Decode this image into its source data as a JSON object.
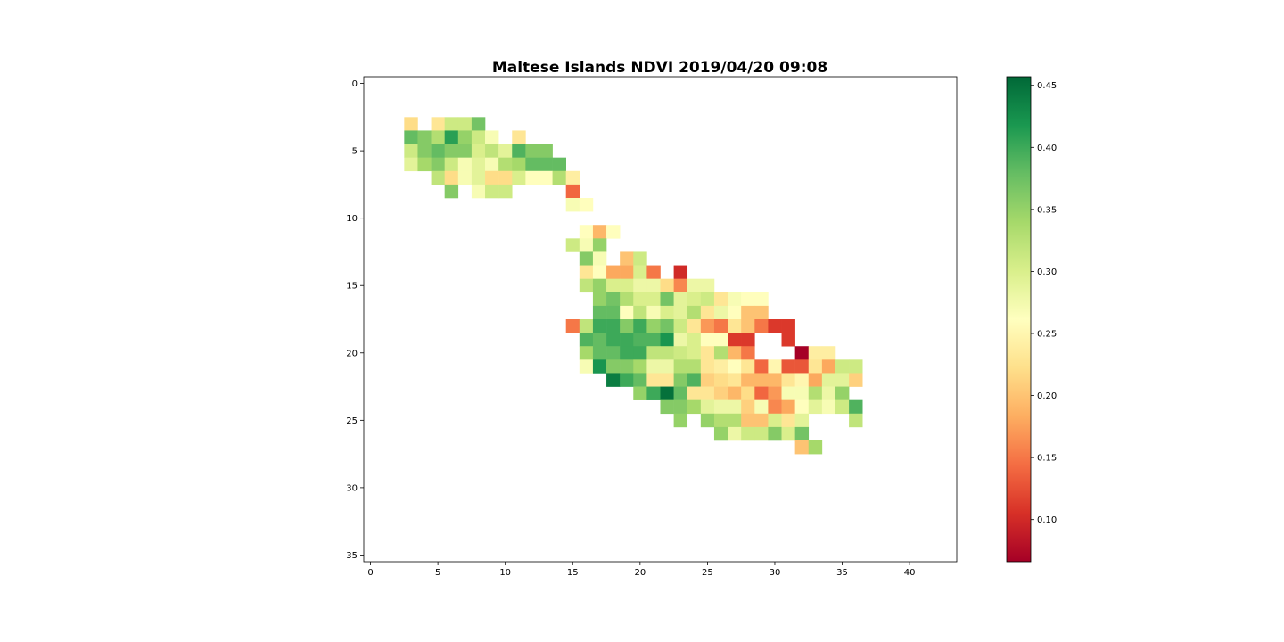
{
  "chart_data": {
    "type": "heatmap",
    "title": "Maltese Islands NDVI 2019/04/20 09:08",
    "colormap": "RdYlGn",
    "vmin": 0.066,
    "vmax": 0.457,
    "xlim": [
      -0.5,
      43.5
    ],
    "ylim": [
      35.5,
      -0.5
    ],
    "x_ticks": [
      0,
      5,
      10,
      15,
      20,
      25,
      30,
      35,
      40
    ],
    "y_ticks": [
      0,
      5,
      10,
      15,
      20,
      25,
      30,
      35
    ],
    "colorbar_ticks": [
      "0.10",
      "0.15",
      "0.20",
      "0.25",
      "0.30",
      "0.35",
      "0.40",
      "0.45"
    ],
    "colorbar_tick_values": [
      0.1,
      0.15,
      0.2,
      0.25,
      0.3,
      0.35,
      0.4,
      0.45
    ],
    "cells": [
      [
        3,
        3,
        0.22
      ],
      [
        5,
        3,
        0.23
      ],
      [
        6,
        3,
        0.31
      ],
      [
        7,
        3,
        0.31
      ],
      [
        8,
        3,
        0.37
      ],
      [
        3,
        4,
        0.38
      ],
      [
        4,
        4,
        0.36
      ],
      [
        5,
        4,
        0.33
      ],
      [
        6,
        4,
        0.41
      ],
      [
        7,
        4,
        0.35
      ],
      [
        8,
        4,
        0.31
      ],
      [
        9,
        4,
        0.27
      ],
      [
        11,
        4,
        0.23
      ],
      [
        3,
        5,
        0.31
      ],
      [
        4,
        5,
        0.36
      ],
      [
        5,
        5,
        0.38
      ],
      [
        6,
        5,
        0.36
      ],
      [
        7,
        5,
        0.36
      ],
      [
        8,
        5,
        0.3
      ],
      [
        9,
        5,
        0.32
      ],
      [
        10,
        5,
        0.29
      ],
      [
        11,
        5,
        0.39
      ],
      [
        12,
        5,
        0.36
      ],
      [
        13,
        5,
        0.36
      ],
      [
        3,
        6,
        0.29
      ],
      [
        4,
        6,
        0.34
      ],
      [
        5,
        6,
        0.36
      ],
      [
        6,
        6,
        0.31
      ],
      [
        7,
        6,
        0.27
      ],
      [
        8,
        6,
        0.29
      ],
      [
        9,
        6,
        0.27
      ],
      [
        10,
        6,
        0.33
      ],
      [
        11,
        6,
        0.34
      ],
      [
        12,
        6,
        0.38
      ],
      [
        13,
        6,
        0.38
      ],
      [
        14,
        6,
        0.38
      ],
      [
        5,
        7,
        0.32
      ],
      [
        6,
        7,
        0.22
      ],
      [
        7,
        7,
        0.27
      ],
      [
        8,
        7,
        0.29
      ],
      [
        9,
        7,
        0.22
      ],
      [
        10,
        7,
        0.22
      ],
      [
        11,
        7,
        0.3
      ],
      [
        12,
        7,
        0.26
      ],
      [
        13,
        7,
        0.26
      ],
      [
        14,
        7,
        0.33
      ],
      [
        15,
        7,
        0.24
      ],
      [
        6,
        8,
        0.36
      ],
      [
        8,
        8,
        0.27
      ],
      [
        9,
        8,
        0.31
      ],
      [
        10,
        8,
        0.31
      ],
      [
        15,
        8,
        0.14
      ],
      [
        15,
        9,
        0.27
      ],
      [
        16,
        9,
        0.26
      ],
      [
        16,
        11,
        0.26
      ],
      [
        17,
        11,
        0.19
      ],
      [
        18,
        11,
        0.26
      ],
      [
        15,
        12,
        0.31
      ],
      [
        16,
        12,
        0.27
      ],
      [
        17,
        12,
        0.35
      ],
      [
        16,
        13,
        0.36
      ],
      [
        17,
        13,
        0.27
      ],
      [
        19,
        13,
        0.2
      ],
      [
        20,
        13,
        0.31
      ],
      [
        16,
        14,
        0.23
      ],
      [
        17,
        14,
        0.26
      ],
      [
        18,
        14,
        0.18
      ],
      [
        19,
        14,
        0.18
      ],
      [
        20,
        14,
        0.3
      ],
      [
        21,
        14,
        0.15
      ],
      [
        23,
        14,
        0.1
      ],
      [
        16,
        15,
        0.32
      ],
      [
        17,
        15,
        0.35
      ],
      [
        18,
        15,
        0.3
      ],
      [
        19,
        15,
        0.3
      ],
      [
        20,
        15,
        0.28
      ],
      [
        21,
        15,
        0.28
      ],
      [
        22,
        15,
        0.22
      ],
      [
        23,
        15,
        0.16
      ],
      [
        24,
        15,
        0.28
      ],
      [
        25,
        15,
        0.28
      ],
      [
        17,
        16,
        0.35
      ],
      [
        18,
        16,
        0.37
      ],
      [
        19,
        16,
        0.33
      ],
      [
        20,
        16,
        0.3
      ],
      [
        21,
        16,
        0.3
      ],
      [
        22,
        16,
        0.37
      ],
      [
        23,
        16,
        0.29
      ],
      [
        24,
        16,
        0.3
      ],
      [
        25,
        16,
        0.31
      ],
      [
        26,
        16,
        0.23
      ],
      [
        27,
        16,
        0.27
      ],
      [
        28,
        16,
        0.26
      ],
      [
        29,
        16,
        0.26
      ],
      [
        17,
        17,
        0.38
      ],
      [
        18,
        17,
        0.38
      ],
      [
        19,
        17,
        0.26
      ],
      [
        20,
        17,
        0.32
      ],
      [
        21,
        17,
        0.27
      ],
      [
        22,
        17,
        0.3
      ],
      [
        23,
        17,
        0.29
      ],
      [
        24,
        17,
        0.33
      ],
      [
        25,
        17,
        0.23
      ],
      [
        26,
        17,
        0.28
      ],
      [
        27,
        17,
        0.26
      ],
      [
        28,
        17,
        0.2
      ],
      [
        29,
        17,
        0.2
      ],
      [
        15,
        18,
        0.15
      ],
      [
        16,
        18,
        0.32
      ],
      [
        17,
        18,
        0.4
      ],
      [
        18,
        18,
        0.4
      ],
      [
        19,
        18,
        0.36
      ],
      [
        20,
        18,
        0.4
      ],
      [
        21,
        18,
        0.35
      ],
      [
        22,
        18,
        0.37
      ],
      [
        23,
        18,
        0.31
      ],
      [
        24,
        18,
        0.23
      ],
      [
        25,
        18,
        0.17
      ],
      [
        26,
        18,
        0.15
      ],
      [
        27,
        18,
        0.23
      ],
      [
        28,
        18,
        0.2
      ],
      [
        29,
        18,
        0.15
      ],
      [
        30,
        18,
        0.11
      ],
      [
        31,
        18,
        0.11
      ],
      [
        16,
        19,
        0.39
      ],
      [
        17,
        19,
        0.38
      ],
      [
        18,
        19,
        0.4
      ],
      [
        19,
        19,
        0.4
      ],
      [
        20,
        19,
        0.39
      ],
      [
        21,
        19,
        0.39
      ],
      [
        22,
        19,
        0.42
      ],
      [
        23,
        19,
        0.28
      ],
      [
        24,
        19,
        0.3
      ],
      [
        25,
        19,
        0.26
      ],
      [
        26,
        19,
        0.26
      ],
      [
        27,
        19,
        0.11
      ],
      [
        28,
        19,
        0.11
      ],
      [
        31,
        19,
        0.11
      ],
      [
        16,
        20,
        0.34
      ],
      [
        17,
        20,
        0.38
      ],
      [
        18,
        20,
        0.38
      ],
      [
        19,
        20,
        0.4
      ],
      [
        20,
        20,
        0.4
      ],
      [
        21,
        20,
        0.32
      ],
      [
        22,
        20,
        0.32
      ],
      [
        23,
        20,
        0.31
      ],
      [
        24,
        20,
        0.3
      ],
      [
        25,
        20,
        0.23
      ],
      [
        26,
        20,
        0.33
      ],
      [
        27,
        20,
        0.19
      ],
      [
        28,
        20,
        0.15
      ],
      [
        32,
        20,
        0.066
      ],
      [
        33,
        20,
        0.24
      ],
      [
        34,
        20,
        0.24
      ],
      [
        16,
        21,
        0.27
      ],
      [
        17,
        21,
        0.42
      ],
      [
        18,
        21,
        0.36
      ],
      [
        19,
        21,
        0.36
      ],
      [
        20,
        21,
        0.34
      ],
      [
        21,
        21,
        0.28
      ],
      [
        22,
        21,
        0.28
      ],
      [
        23,
        21,
        0.33
      ],
      [
        24,
        21,
        0.33
      ],
      [
        25,
        21,
        0.23
      ],
      [
        26,
        21,
        0.24
      ],
      [
        27,
        21,
        0.26
      ],
      [
        28,
        21,
        0.23
      ],
      [
        29,
        21,
        0.14
      ],
      [
        30,
        21,
        0.25
      ],
      [
        31,
        21,
        0.13
      ],
      [
        32,
        21,
        0.13
      ],
      [
        33,
        21,
        0.23
      ],
      [
        34,
        21,
        0.18
      ],
      [
        35,
        21,
        0.31
      ],
      [
        36,
        21,
        0.31
      ],
      [
        18,
        22,
        0.44
      ],
      [
        19,
        22,
        0.4
      ],
      [
        20,
        22,
        0.38
      ],
      [
        21,
        22,
        0.23
      ],
      [
        22,
        22,
        0.23
      ],
      [
        23,
        22,
        0.36
      ],
      [
        24,
        22,
        0.39
      ],
      [
        25,
        22,
        0.21
      ],
      [
        26,
        22,
        0.22
      ],
      [
        27,
        22,
        0.23
      ],
      [
        28,
        22,
        0.19
      ],
      [
        29,
        22,
        0.19
      ],
      [
        30,
        22,
        0.19
      ],
      [
        31,
        22,
        0.23
      ],
      [
        32,
        22,
        0.25
      ],
      [
        33,
        22,
        0.18
      ],
      [
        34,
        22,
        0.29
      ],
      [
        35,
        22,
        0.29
      ],
      [
        36,
        22,
        0.21
      ],
      [
        20,
        23,
        0.35
      ],
      [
        21,
        23,
        0.4
      ],
      [
        22,
        23,
        0.45
      ],
      [
        23,
        23,
        0.38
      ],
      [
        24,
        23,
        0.23
      ],
      [
        25,
        23,
        0.23
      ],
      [
        26,
        23,
        0.21
      ],
      [
        27,
        23,
        0.19
      ],
      [
        28,
        23,
        0.22
      ],
      [
        29,
        23,
        0.14
      ],
      [
        30,
        23,
        0.17
      ],
      [
        31,
        23,
        0.27
      ],
      [
        32,
        23,
        0.27
      ],
      [
        33,
        23,
        0.33
      ],
      [
        34,
        23,
        0.28
      ],
      [
        35,
        23,
        0.35
      ],
      [
        22,
        24,
        0.36
      ],
      [
        23,
        24,
        0.36
      ],
      [
        24,
        24,
        0.34
      ],
      [
        25,
        24,
        0.29
      ],
      [
        26,
        24,
        0.28
      ],
      [
        27,
        24,
        0.28
      ],
      [
        28,
        24,
        0.21
      ],
      [
        29,
        24,
        0.27
      ],
      [
        30,
        24,
        0.16
      ],
      [
        31,
        24,
        0.18
      ],
      [
        32,
        24,
        0.26
      ],
      [
        33,
        24,
        0.29
      ],
      [
        34,
        24,
        0.27
      ],
      [
        35,
        24,
        0.31
      ],
      [
        36,
        24,
        0.39
      ],
      [
        23,
        25,
        0.35
      ],
      [
        25,
        25,
        0.35
      ],
      [
        26,
        25,
        0.33
      ],
      [
        27,
        25,
        0.33
      ],
      [
        28,
        25,
        0.2
      ],
      [
        29,
        25,
        0.2
      ],
      [
        30,
        25,
        0.3
      ],
      [
        31,
        25,
        0.23
      ],
      [
        32,
        25,
        0.29
      ],
      [
        36,
        25,
        0.32
      ],
      [
        26,
        26,
        0.35
      ],
      [
        27,
        26,
        0.28
      ],
      [
        28,
        26,
        0.31
      ],
      [
        29,
        26,
        0.31
      ],
      [
        30,
        26,
        0.36
      ],
      [
        31,
        26,
        0.3
      ],
      [
        32,
        26,
        0.37
      ],
      [
        32,
        27,
        0.2
      ],
      [
        33,
        27,
        0.34
      ]
    ]
  }
}
